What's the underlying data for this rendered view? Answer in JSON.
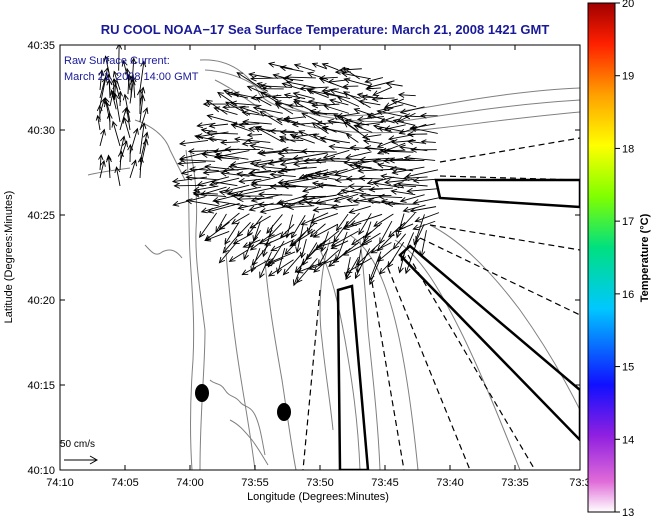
{
  "title": "RU COOL  NOAA−17  Sea Surface Temperature:  March 21, 2008 1421 GMT",
  "legend": {
    "line1": "Raw Surface Current:",
    "line2": "March 21, 2008 14:00 GMT"
  },
  "scale_label": "50 cm/s",
  "x_axis": {
    "label": "Longitude (Degrees:Minutes)",
    "ticks": [
      "74:10",
      "74:05",
      "74:00",
      "73:55",
      "73:50",
      "73:45",
      "73:40",
      "73:35",
      "73:3"
    ]
  },
  "y_axis": {
    "label": "Latitude (Degrees:Minutes)",
    "ticks": [
      "40:35",
      "40:30",
      "40:25",
      "40:20",
      "40:15",
      "40:10"
    ]
  },
  "colorbar": {
    "label": "Temperature (°C)",
    "ticks": [
      "20",
      "19",
      "18",
      "17",
      "16",
      "15",
      "14",
      "13"
    ],
    "min": 13,
    "max": 20
  },
  "colors": {
    "title": "#1a1a99",
    "land_contour": "#808080",
    "vectors": "#000000",
    "frame": "#000000"
  }
}
